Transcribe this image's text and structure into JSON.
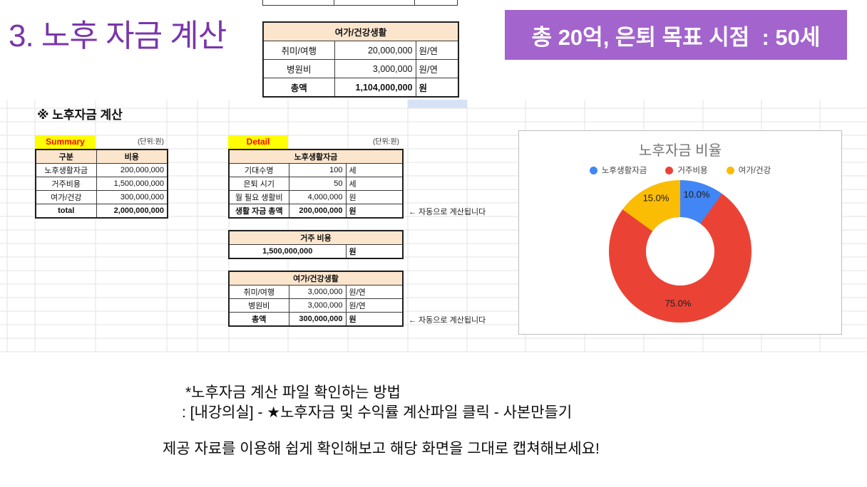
{
  "slide": {
    "title": "3. 노후 자금 계산",
    "banner": "총 20억, 은퇴 목표 시점  : 50세",
    "footer": {
      "line1": "*노후자금 계산 파일 확인하는 방법",
      "line2": ": [내강의실] - ★노후자금 및 수익률 계산파일 클릭 - 사본만들기",
      "line3": "제공 자료를 이용해 쉽게 확인해보고 해당 화면을 그대로 캡쳐해보세요!"
    }
  },
  "top_table": {
    "title": "여가/건강생활",
    "rows": [
      {
        "label": "취미/여행",
        "value": "20,000,000",
        "unit": "원/연"
      },
      {
        "label": "병원비",
        "value": "3,000,000",
        "unit": "원/연"
      },
      {
        "label": "총액",
        "value": "1,104,000,000",
        "unit": "원"
      }
    ]
  },
  "sheet": {
    "heading": "※ 노후자금 계산",
    "summary": {
      "label": "Summary",
      "unit_note": "(단위:원)",
      "col_headers": [
        "구분",
        "비용"
      ],
      "rows": [
        {
          "label": "노후생활자금",
          "value": "200,000,000"
        },
        {
          "label": "거주비용",
          "value": "1,500,000,000"
        },
        {
          "label": "여가/건강",
          "value": "300,000,000"
        },
        {
          "label": "total",
          "value": "2,000,000,000"
        }
      ]
    },
    "detail": {
      "label": "Detail",
      "unit_note": "(단위:원)",
      "life": {
        "title": "노후생활자금",
        "rows": [
          {
            "label": "기대수명",
            "value": "100",
            "unit": "세"
          },
          {
            "label": "은퇴 시기",
            "value": "50",
            "unit": "세"
          },
          {
            "label": "월 필요 생활비",
            "value": "4,000,000",
            "unit": "원"
          },
          {
            "label": "생활 자금 총액",
            "value": "200,000,000",
            "unit": "원"
          }
        ],
        "note": "← 자동으로 계산됩니다"
      },
      "housing": {
        "title": "거주 비용",
        "value": "1,500,000,000",
        "unit": "원"
      },
      "leisure": {
        "title": "여가/건강생활",
        "rows": [
          {
            "label": "취미/여행",
            "value": "3,000,000",
            "unit": "원/연"
          },
          {
            "label": "병원비",
            "value": "3,000,000",
            "unit": "원/연"
          },
          {
            "label": "총액",
            "value": "300,000,000",
            "unit": "원"
          }
        ],
        "note": "← 자동으로 계산됩니다"
      }
    }
  },
  "chart_data": {
    "type": "pie",
    "variant": "donut",
    "title": "노후자금 비율",
    "categories": [
      "노후생활자금",
      "거주비용",
      "여가/건강"
    ],
    "values": [
      10.0,
      75.0,
      15.0
    ],
    "slice_labels": [
      "10.0%",
      "75.0%",
      "15.0%"
    ],
    "colors": [
      "#4285F4",
      "#EA4335",
      "#FBBC04"
    ],
    "legend_position": "top",
    "start_angle_deg": 0,
    "direction": "clockwise"
  }
}
